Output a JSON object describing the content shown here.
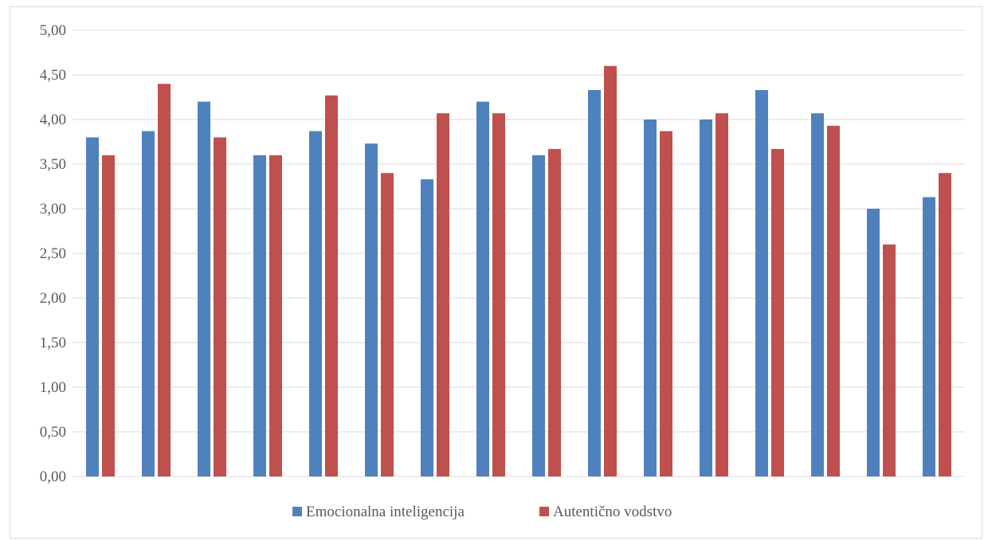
{
  "chart_data": {
    "type": "bar",
    "categories": [
      "",
      "",
      "",
      "",
      "",
      "",
      "",
      "",
      "",
      "",
      "",
      "",
      "",
      "",
      "",
      ""
    ],
    "series": [
      {
        "name": "Emocionalna inteligencija",
        "color": "#4F81BD",
        "values": [
          3.8,
          3.87,
          4.2,
          3.6,
          3.87,
          3.73,
          3.33,
          4.2,
          3.6,
          4.33,
          4.0,
          4.0,
          4.33,
          4.07,
          3.0,
          3.13
        ]
      },
      {
        "name": "Autentično vodstvo",
        "color": "#C0504D",
        "values": [
          3.6,
          4.4,
          3.8,
          3.6,
          4.27,
          3.4,
          4.07,
          4.07,
          3.67,
          4.6,
          3.87,
          4.07,
          3.67,
          3.93,
          2.6,
          3.4
        ]
      }
    ],
    "ylim": [
      0,
      5
    ],
    "yticks": [
      "0,00",
      "0,50",
      "1,00",
      "1,50",
      "2,00",
      "2,50",
      "3,00",
      "3,50",
      "4,00",
      "4,50",
      "5,00"
    ],
    "grid": true,
    "legend": "bottom",
    "gridcolor": "#d9d9d9"
  }
}
